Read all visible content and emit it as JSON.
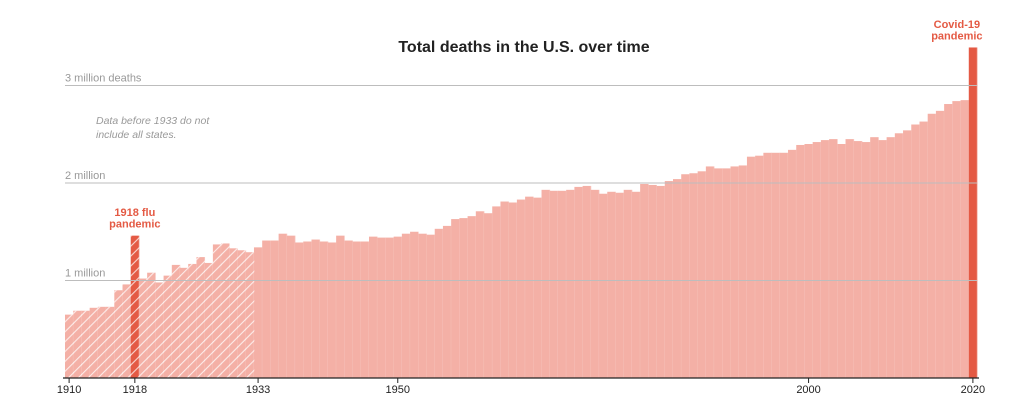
{
  "chart_data": {
    "type": "bar",
    "title": "Total deaths in the U.S. over time",
    "y_unit_label": "3 million deaths",
    "gridlines": [
      {
        "value": 1000000,
        "label": "1 million"
      },
      {
        "value": 2000000,
        "label": "2 million"
      },
      {
        "value": 3000000,
        "label": "3 million deaths"
      }
    ],
    "ylim": [
      0,
      3300000
    ],
    "xlim": [
      1910,
      2020
    ],
    "x_ticks": [
      1910,
      1918,
      1933,
      1950,
      2000,
      2020
    ],
    "note": [
      "Data before 1933 do not",
      "include all states."
    ],
    "annotations": [
      {
        "year": 1918,
        "lines": [
          "1918 flu",
          "pandemic"
        ]
      },
      {
        "year": 2020,
        "lines": [
          "Covid-19",
          "pandemic"
        ]
      }
    ],
    "incomplete_data_before": 1933,
    "colors": {
      "bar": "#f4b0a6",
      "highlight": "#e45a44",
      "hatch": "#ffffff",
      "grid": "#bdbdbd",
      "axis": "#222222"
    },
    "x": [
      1910,
      1911,
      1912,
      1913,
      1914,
      1915,
      1916,
      1917,
      1918,
      1919,
      1920,
      1921,
      1922,
      1923,
      1924,
      1925,
      1926,
      1927,
      1928,
      1929,
      1930,
      1931,
      1932,
      1933,
      1934,
      1935,
      1936,
      1937,
      1938,
      1939,
      1940,
      1941,
      1942,
      1943,
      1944,
      1945,
      1946,
      1947,
      1948,
      1949,
      1950,
      1951,
      1952,
      1953,
      1954,
      1955,
      1956,
      1957,
      1958,
      1959,
      1960,
      1961,
      1962,
      1963,
      1964,
      1965,
      1966,
      1967,
      1968,
      1969,
      1970,
      1971,
      1972,
      1973,
      1974,
      1975,
      1976,
      1977,
      1978,
      1979,
      1980,
      1981,
      1982,
      1983,
      1984,
      1985,
      1986,
      1987,
      1988,
      1989,
      1990,
      1991,
      1992,
      1993,
      1994,
      1995,
      1996,
      1997,
      1998,
      1999,
      2000,
      2001,
      2002,
      2003,
      2004,
      2005,
      2006,
      2007,
      2008,
      2009,
      2010,
      2011,
      2012,
      2013,
      2014,
      2015,
      2016,
      2017,
      2018,
      2019,
      2020
    ],
    "values": [
      650000,
      690000,
      690000,
      720000,
      730000,
      730000,
      900000,
      960000,
      1460000,
      1020000,
      1080000,
      980000,
      1050000,
      1160000,
      1130000,
      1170000,
      1240000,
      1180000,
      1370000,
      1380000,
      1330000,
      1310000,
      1290000,
      1340000,
      1410000,
      1410000,
      1480000,
      1460000,
      1390000,
      1400000,
      1420000,
      1400000,
      1390000,
      1460000,
      1410000,
      1400000,
      1400000,
      1450000,
      1440000,
      1440000,
      1450000,
      1480000,
      1500000,
      1480000,
      1470000,
      1530000,
      1560000,
      1630000,
      1640000,
      1660000,
      1710000,
      1690000,
      1760000,
      1810000,
      1800000,
      1830000,
      1860000,
      1850000,
      1930000,
      1920000,
      1920000,
      1930000,
      1960000,
      1970000,
      1930000,
      1890000,
      1910000,
      1900000,
      1930000,
      1910000,
      1990000,
      1980000,
      1970000,
      2020000,
      2040000,
      2090000,
      2100000,
      2120000,
      2170000,
      2150000,
      2150000,
      2170000,
      2180000,
      2270000,
      2280000,
      2310000,
      2310000,
      2310000,
      2340000,
      2390000,
      2400000,
      2420000,
      2440000,
      2450000,
      2400000,
      2450000,
      2430000,
      2420000,
      2470000,
      2440000,
      2470000,
      2510000,
      2540000,
      2600000,
      2630000,
      2710000,
      2740000,
      2810000,
      2840000,
      2850000,
      3390000
    ]
  }
}
